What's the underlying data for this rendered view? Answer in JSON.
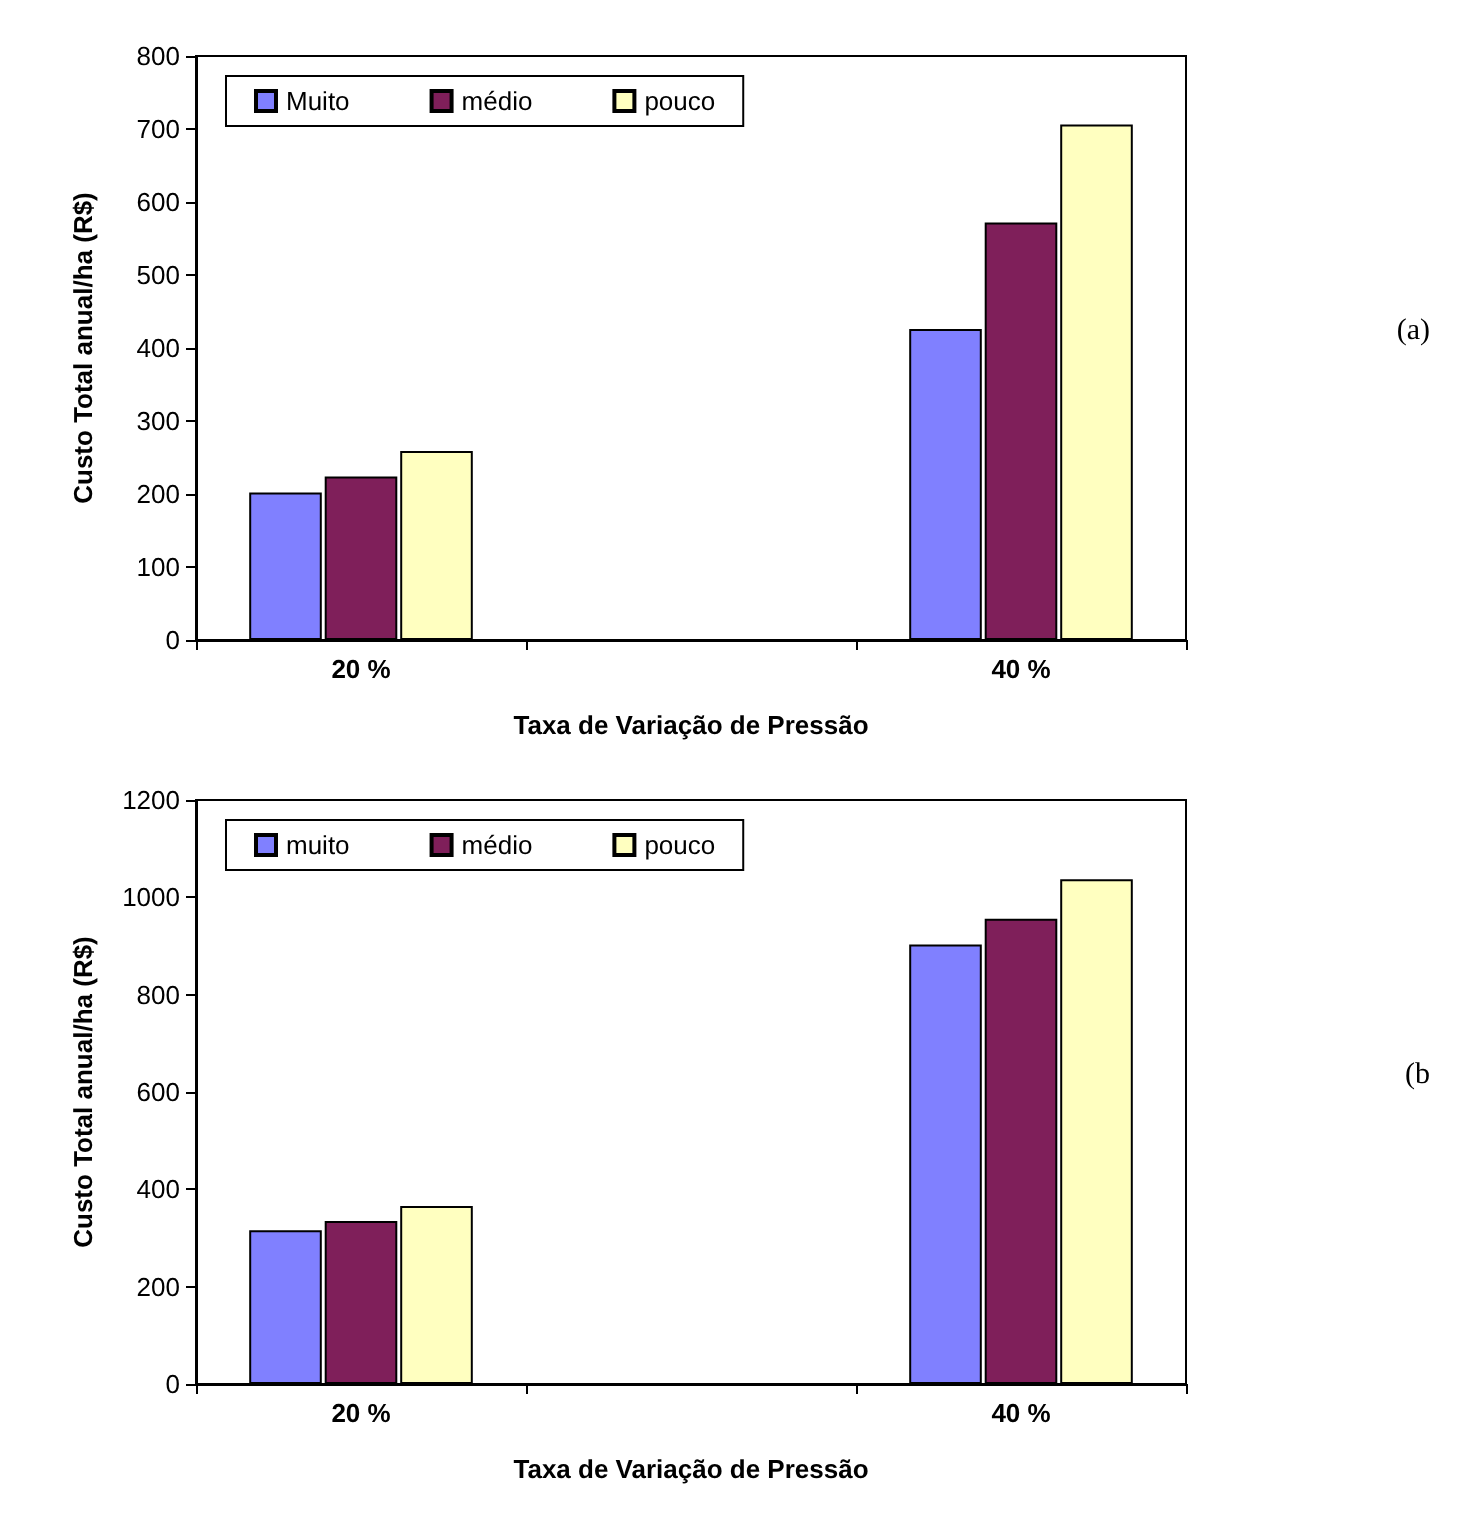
{
  "chart_data": [
    {
      "type": "bar",
      "categories": [
        "20 %",
        null,
        "40 %"
      ],
      "xlabel": "Taxa de Variação de Pressão",
      "ylabel": "Custo Total anual/ha (R$)",
      "ylim": [
        0,
        800
      ],
      "yticks": [
        0,
        100,
        200,
        300,
        400,
        500,
        600,
        700,
        800
      ],
      "grid": false,
      "legend": "top left",
      "annotations": [
        "(a)"
      ],
      "series": [
        {
          "name": "Muito",
          "color": "#8080ff",
          "values": [
            202,
            null,
            426
          ]
        },
        {
          "name": "médio",
          "color": "#7f1f5a",
          "values": [
            224,
            null,
            572
          ]
        },
        {
          "name": "pouco",
          "color": "#ffffc0",
          "values": [
            259,
            null,
            706
          ]
        }
      ]
    },
    {
      "type": "bar",
      "categories": [
        "20 %",
        null,
        "40 %"
      ],
      "xlabel": "Taxa de Variação de Pressão",
      "ylabel": "Custo Total anual/ha (R$)",
      "ylim": [
        0,
        1200
      ],
      "yticks": [
        0,
        200,
        400,
        600,
        800,
        1000,
        1200
      ],
      "grid": false,
      "legend": "top left",
      "annotations": [
        "(b"
      ],
      "series": [
        {
          "name": "muito",
          "color": "#8080ff",
          "values": [
            316,
            null,
            903
          ]
        },
        {
          "name": "médio",
          "color": "#7f1f5a",
          "values": [
            335,
            null,
            956
          ]
        },
        {
          "name": "pouco",
          "color": "#ffffc0",
          "values": [
            366,
            null,
            1037
          ]
        }
      ]
    }
  ]
}
